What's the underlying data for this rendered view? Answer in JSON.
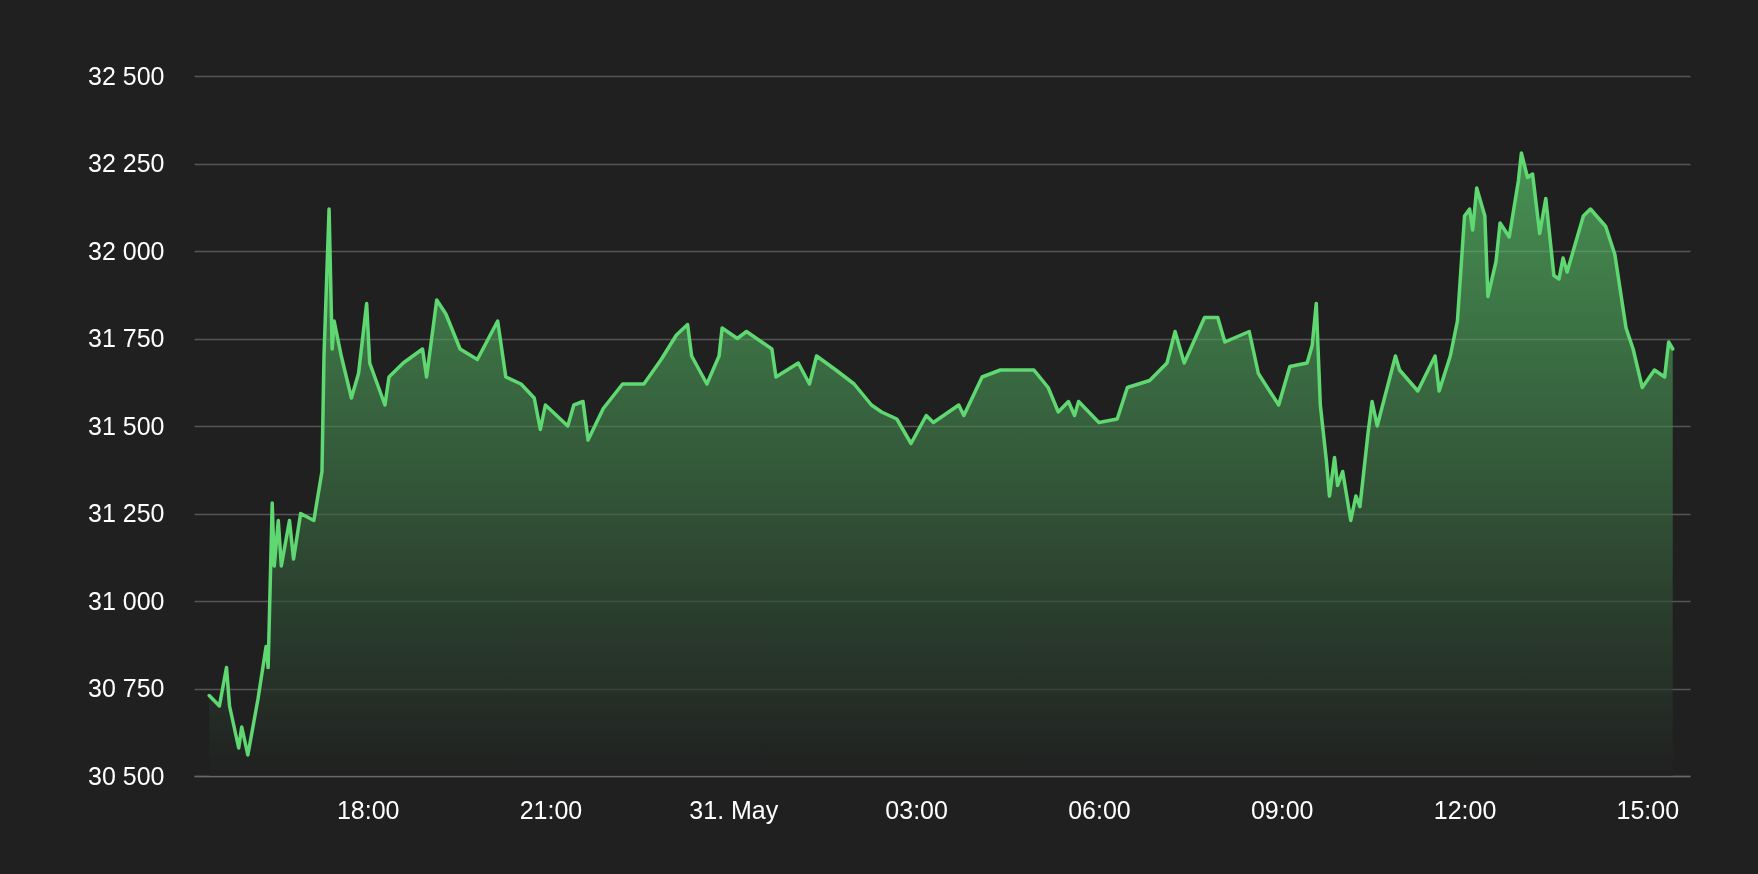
{
  "chart_data": {
    "type": "area",
    "grid": "y",
    "xlim": [
      "--05-30T15:09",
      "--05-31T15:42"
    ],
    "xticks": [
      {
        "value": "--05-30T18:00",
        "label": "18:00"
      },
      {
        "value": "--05-30T21:00",
        "label": "21:00"
      },
      {
        "value": "--05-31T00:00",
        "label": "31. May"
      },
      {
        "value": "--05-31T03:00",
        "label": "03:00"
      },
      {
        "value": "--05-31T06:00",
        "label": "06:00"
      },
      {
        "value": "--05-31T09:00",
        "label": "09:00"
      },
      {
        "value": "--05-31T12:00",
        "label": "12:00"
      },
      {
        "value": "--05-31T15:00",
        "label": "15:00"
      }
    ],
    "ylim": [
      30500,
      32500
    ],
    "yticks": [
      {
        "value": 30500,
        "label": "30 500"
      },
      {
        "value": 30750,
        "label": "30 750"
      },
      {
        "value": 31000,
        "label": "31 000"
      },
      {
        "value": 31250,
        "label": "31 250"
      },
      {
        "value": 31500,
        "label": "31 500"
      },
      {
        "value": 31750,
        "label": "31 750"
      },
      {
        "value": 32000,
        "label": "32 000"
      },
      {
        "value": 32250,
        "label": "32 250"
      },
      {
        "value": 32500,
        "label": "32 500"
      }
    ],
    "x": [
      "--05-30T15:24",
      "--05-30T15:34",
      "--05-30T15:41",
      "--05-30T15:44",
      "--05-30T15:53",
      "--05-30T15:56",
      "--05-30T16:02",
      "--05-30T16:12",
      "--05-30T16:20",
      "--05-30T16:22",
      "--05-30T16:26",
      "--05-30T16:28",
      "--05-30T16:32",
      "--05-30T16:35",
      "--05-30T16:43",
      "--05-30T16:47",
      "--05-30T16:54",
      "--05-30T17:07",
      "--05-30T17:15",
      "--05-30T17:17",
      "--05-30T17:22",
      "--05-30T17:25",
      "--05-30T17:27",
      "--05-30T17:34",
      "--05-30T17:44",
      "--05-30T17:51",
      "--05-30T17:59",
      "--05-30T18:02",
      "--05-30T18:17",
      "--05-30T18:21",
      "--05-30T18:35",
      "--05-30T18:54",
      "--05-30T18:58",
      "--05-30T19:08",
      "--05-30T19:17",
      "--05-30T19:31",
      "--05-30T19:48",
      "--05-30T20:08",
      "--05-30T20:16",
      "--05-30T20:31",
      "--05-30T20:44",
      "--05-30T20:50",
      "--05-30T20:55",
      "--05-30T21:17",
      "--05-30T21:23",
      "--05-30T21:32",
      "--05-30T21:37",
      "--05-30T21:52",
      "--05-30T22:11",
      "--05-30T22:32",
      "--05-30T22:49",
      "--05-30T23:04",
      "--05-30T23:15",
      "--05-30T23:19",
      "--05-30T23:34",
      "--05-30T23:46",
      "--05-30T23:49",
      "--05-31T00:04",
      "--05-31T00:13",
      "--05-31T00:38",
      "--05-31T00:42",
      "--05-31T01:04",
      "--05-31T01:15",
      "--05-31T01:22",
      "--05-31T01:41",
      "--05-31T01:59",
      "--05-31T02:16",
      "--05-31T02:26",
      "--05-31T02:41",
      "--05-31T02:55",
      "--05-31T03:10",
      "--05-31T03:17",
      "--05-31T03:42",
      "--05-31T03:47",
      "--05-31T04:05",
      "--05-31T04:23",
      "--05-31T04:56",
      "--05-31T05:10",
      "--05-31T05:20",
      "--05-31T05:30",
      "--05-31T05:36",
      "--05-31T05:40",
      "--05-31T06:00",
      "--05-31T06:18",
      "--05-31T06:28",
      "--05-31T06:50",
      "--05-31T07:07",
      "--05-31T07:15",
      "--05-31T07:24",
      "--05-31T07:44",
      "--05-31T07:57",
      "--05-31T08:04",
      "--05-31T08:28",
      "--05-31T08:37",
      "--05-31T08:57",
      "--05-31T09:08",
      "--05-31T09:25",
      "--05-31T09:30",
      "--05-31T09:34",
      "--05-31T09:38",
      "--05-31T09:44",
      "--05-31T09:47",
      "--05-31T09:52",
      "--05-31T09:55",
      "--05-31T10:00",
      "--05-31T10:08",
      "--05-31T10:13",
      "--05-31T10:17",
      "--05-31T10:25",
      "--05-31T10:29",
      "--05-31T10:34",
      "--05-31T10:52",
      "--05-31T10:56",
      "--05-31T11:14",
      "--05-31T11:31",
      "--05-31T11:35",
      "--05-31T11:46",
      "--05-31T11:53",
      "--05-31T12:00",
      "--05-31T12:05",
      "--05-31T12:08",
      "--05-31T12:12",
      "--05-31T12:20",
      "--05-31T12:23",
      "--05-31T12:31",
      "--05-31T12:35",
      "--05-31T12:44",
      "--05-31T12:53",
      "--05-31T12:56",
      "--05-31T13:02",
      "--05-31T13:07",
      "--05-31T13:14",
      "--05-31T13:20",
      "--05-31T13:28",
      "--05-31T13:33",
      "--05-31T13:37",
      "--05-31T13:41",
      "--05-31T13:57",
      "--05-31T14:04",
      "--05-31T14:19",
      "--05-31T14:28",
      "--05-31T14:39",
      "--05-31T14:46",
      "--05-31T14:55",
      "--05-31T15:07",
      "--05-31T15:17",
      "--05-31T15:21",
      "--05-31T15:25"
    ],
    "series": [
      {
        "color": "#5fd872",
        "values": [
          30730,
          30700,
          30810,
          30700,
          30580,
          30640,
          30560,
          30720,
          30870,
          30810,
          31280,
          31100,
          31230,
          31100,
          31230,
          31120,
          31250,
          31230,
          31370,
          31700,
          32120,
          31720,
          31800,
          31700,
          31580,
          31650,
          31850,
          31680,
          31560,
          31640,
          31680,
          31720,
          31640,
          31860,
          31820,
          31720,
          31690,
          31800,
          31640,
          31620,
          31580,
          31490,
          31560,
          31500,
          31560,
          31570,
          31460,
          31550,
          31620,
          31620,
          31690,
          31760,
          31790,
          31700,
          31620,
          31700,
          31780,
          31750,
          31770,
          31720,
          31640,
          31680,
          31620,
          31700,
          31660,
          31620,
          31560,
          31540,
          31520,
          31450,
          31530,
          31510,
          31560,
          31530,
          31640,
          31660,
          31660,
          31610,
          31540,
          31570,
          31530,
          31570,
          31510,
          31520,
          31610,
          31630,
          31680,
          31770,
          31680,
          31810,
          31810,
          31740,
          31770,
          31650,
          31560,
          31670,
          31680,
          31730,
          31850,
          31560,
          31400,
          31300,
          31410,
          31330,
          31370,
          31230,
          31300,
          31270,
          31480,
          31570,
          31500,
          31700,
          31660,
          31600,
          31700,
          31600,
          31700,
          31800,
          32100,
          32120,
          32060,
          32180,
          32100,
          31870,
          31970,
          32080,
          32040,
          32200,
          32280,
          32210,
          32220,
          32050,
          32150,
          31930,
          31920,
          31980,
          31940,
          32100,
          32120,
          32070,
          31990,
          31780,
          31720,
          31610,
          31660,
          31640,
          31740,
          31720
        ]
      }
    ]
  }
}
